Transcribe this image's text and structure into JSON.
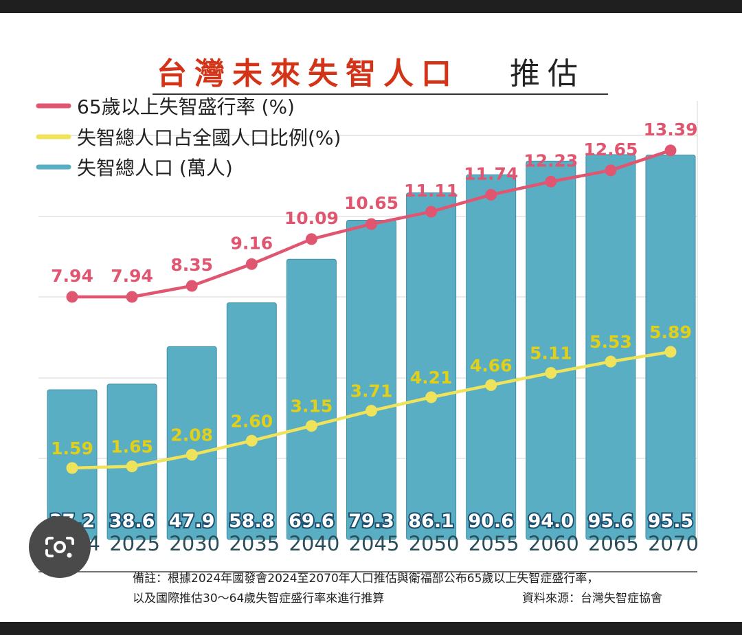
{
  "title_emphasis": "台灣未來失智人口",
  "title_rest": "推估",
  "colors": {
    "red": "#e05670",
    "yellow": "#f0e35c",
    "yellow_text": "#e2cf18",
    "bar": "#5aaec4",
    "bar_stroke": "#3d8ea6",
    "title_red": "#d33418",
    "year": "#2b4d58"
  },
  "legend": [
    {
      "label": "65歲以上失智盛行率 (%)",
      "color": "#e05670"
    },
    {
      "label": "失智總人口占全國人口比例(%)",
      "color": "#f0e35c"
    },
    {
      "label": "失智總人口 (萬人)",
      "color": "#5aaec4"
    }
  ],
  "chart_data": {
    "type": "bar",
    "categories": [
      "2024",
      "2025",
      "2030",
      "2035",
      "2040",
      "2045",
      "2050",
      "2055",
      "2060",
      "2065",
      "2070"
    ],
    "series": [
      {
        "name": "失智總人口 (萬人)",
        "type": "bar",
        "values": [
          37.2,
          38.6,
          47.9,
          58.8,
          69.6,
          79.3,
          86.1,
          90.6,
          94.0,
          95.6,
          95.5
        ],
        "labels": [
          "37.2",
          "38.6",
          "47.9",
          "58.8",
          "69.6",
          "79.3",
          "86.1",
          "90.6",
          "94.0",
          "95.6",
          "95.5"
        ]
      },
      {
        "name": "65歲以上失智盛行率 (%)",
        "type": "line",
        "values": [
          7.94,
          7.94,
          8.35,
          9.16,
          10.09,
          10.65,
          11.11,
          11.74,
          12.23,
          12.65,
          13.39
        ],
        "labels": [
          "7.94",
          "7.94",
          "8.35",
          "9.16",
          "10.09",
          "10.65",
          "11.11",
          "11.74",
          "12.23",
          "12.65",
          "13.39"
        ]
      },
      {
        "name": "失智總人口占全國人口比例(%)",
        "type": "line",
        "values": [
          1.59,
          1.65,
          2.08,
          2.6,
          3.15,
          3.71,
          4.21,
          4.66,
          5.11,
          5.53,
          5.89
        ],
        "labels": [
          "1.59",
          "1.65",
          "2.08",
          "2.60",
          "3.15",
          "3.71",
          "4.21",
          "4.66",
          "5.11",
          "5.53",
          "5.89"
        ]
      }
    ],
    "grid": true,
    "legend_position": "top-left"
  },
  "footnote": {
    "line1": "備註：根據2024年國發會2024至2070年人口推估與衛福部公布65歲以上失智症盛行率，",
    "line2": "以及國際推估30～64歲失智症盛行率來進行推算",
    "source": "資料來源：台灣失智症協會"
  }
}
